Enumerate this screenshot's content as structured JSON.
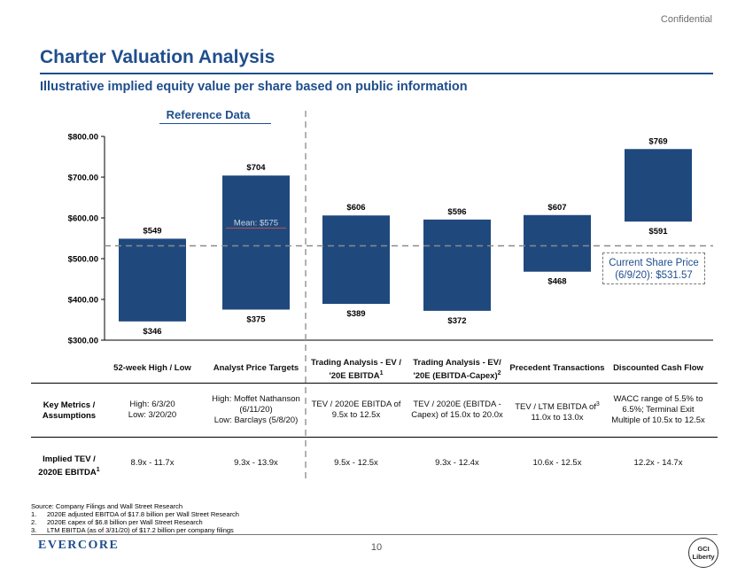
{
  "confidential": "Confidential",
  "title": "Charter Valuation Analysis",
  "subtitle": "Illustrative implied equity value per share based on public information",
  "reference_header": "Reference Data",
  "colors": {
    "bar": "#1f497d",
    "title": "#1f4e8c",
    "mean_line": "#c0504d"
  },
  "chart_data": {
    "type": "bar",
    "subtype": "floating-range",
    "ylim": [
      300,
      800
    ],
    "ytick_labels": [
      "$800.00",
      "$700.00",
      "$600.00",
      "$500.00",
      "$400.00",
      "$300.00"
    ],
    "ytick_values": [
      800,
      700,
      600,
      500,
      400,
      300
    ],
    "categories": [
      "52-week High / Low",
      "Analyst Price Targets",
      "Trading Analysis - EV / '20E EBITDA",
      "Trading Analysis - EV/ '20E (EBITDA-Capex)",
      "Precedent Transactions",
      "Discounted Cash Flow"
    ],
    "high": [
      549,
      704,
      606,
      596,
      607,
      769
    ],
    "low": [
      346,
      375,
      389,
      372,
      468,
      591
    ],
    "high_labels": [
      "$549",
      "$704",
      "$606",
      "$596",
      "$607",
      "$769"
    ],
    "low_labels": [
      "$346",
      "$375",
      "$389",
      "$372",
      "$468",
      "$591"
    ],
    "mean": {
      "label": "Mean: $575",
      "value": 575,
      "bar_index": 1
    },
    "reference_line": {
      "value": 531.57,
      "label_line1": "Current Share Price",
      "label_line2": "(6/9/20): $531.57"
    }
  },
  "table": {
    "headers": [
      {
        "line1": "52-week High / Low",
        "line2": "",
        "sup": ""
      },
      {
        "line1": "Analyst Price Targets",
        "line2": "",
        "sup": ""
      },
      {
        "line1": "Trading Analysis - EV /",
        "line2": "'20E EBITDA",
        "sup": "1"
      },
      {
        "line1": "Trading Analysis - EV/",
        "line2": "'20E (EBITDA-Capex)",
        "sup": "2"
      },
      {
        "line1": "Precedent Transactions",
        "line2": "",
        "sup": ""
      },
      {
        "line1": "Discounted Cash Flow",
        "line2": "",
        "sup": ""
      }
    ],
    "row1_label": {
      "line1": "Key Metrics /",
      "line2": "Assumptions"
    },
    "row1": [
      {
        "lines": [
          "High: 6/3/20",
          "Low: 3/20/20"
        ]
      },
      {
        "lines": [
          "High: Moffet Nathanson",
          "(6/11/20)",
          "Low: Barclays (5/8/20)"
        ]
      },
      {
        "lines": [
          "TEV / 2020E EBITDA of",
          "9.5x to 12.5x"
        ]
      },
      {
        "lines": [
          "TEV / 2020E (EBITDA -",
          "Capex) of 15.0x to 20.0x"
        ]
      },
      {
        "lines": [
          "TEV / LTM EBITDA of",
          "11.0x to 13.0x"
        ],
        "sup": "3"
      },
      {
        "lines": [
          "WACC range of 5.5% to",
          "6.5%; Terminal Exit",
          "Multiple of 10.5x to 12.5x"
        ]
      }
    ],
    "row2_label": {
      "line1": "Implied TEV /",
      "line2": "2020E EBITDA",
      "sup": "1"
    },
    "row2": [
      "8.9x - 11.7x",
      "9.3x - 13.9x",
      "9.5x - 12.5x",
      "9.3x - 12.4x",
      "10.6x - 12.5x",
      "12.2x - 14.7x"
    ]
  },
  "sources": {
    "source": "Source:  Company Filings and Wall Street Research",
    "notes": [
      {
        "num": "1.",
        "text": "2020E adjusted EBITDA of $17.8 billion per Wall Street Research"
      },
      {
        "num": "2.",
        "text": "2020E capex of $6.8 billion per Wall Street Research"
      },
      {
        "num": "3.",
        "text": "LTM EBITDA (as of 3/31/20) of $17.2 billion per company filings"
      }
    ]
  },
  "footer": {
    "logo": "Evercore",
    "page": "10",
    "gci_line1": "GCI",
    "gci_line2": "Liberty"
  }
}
